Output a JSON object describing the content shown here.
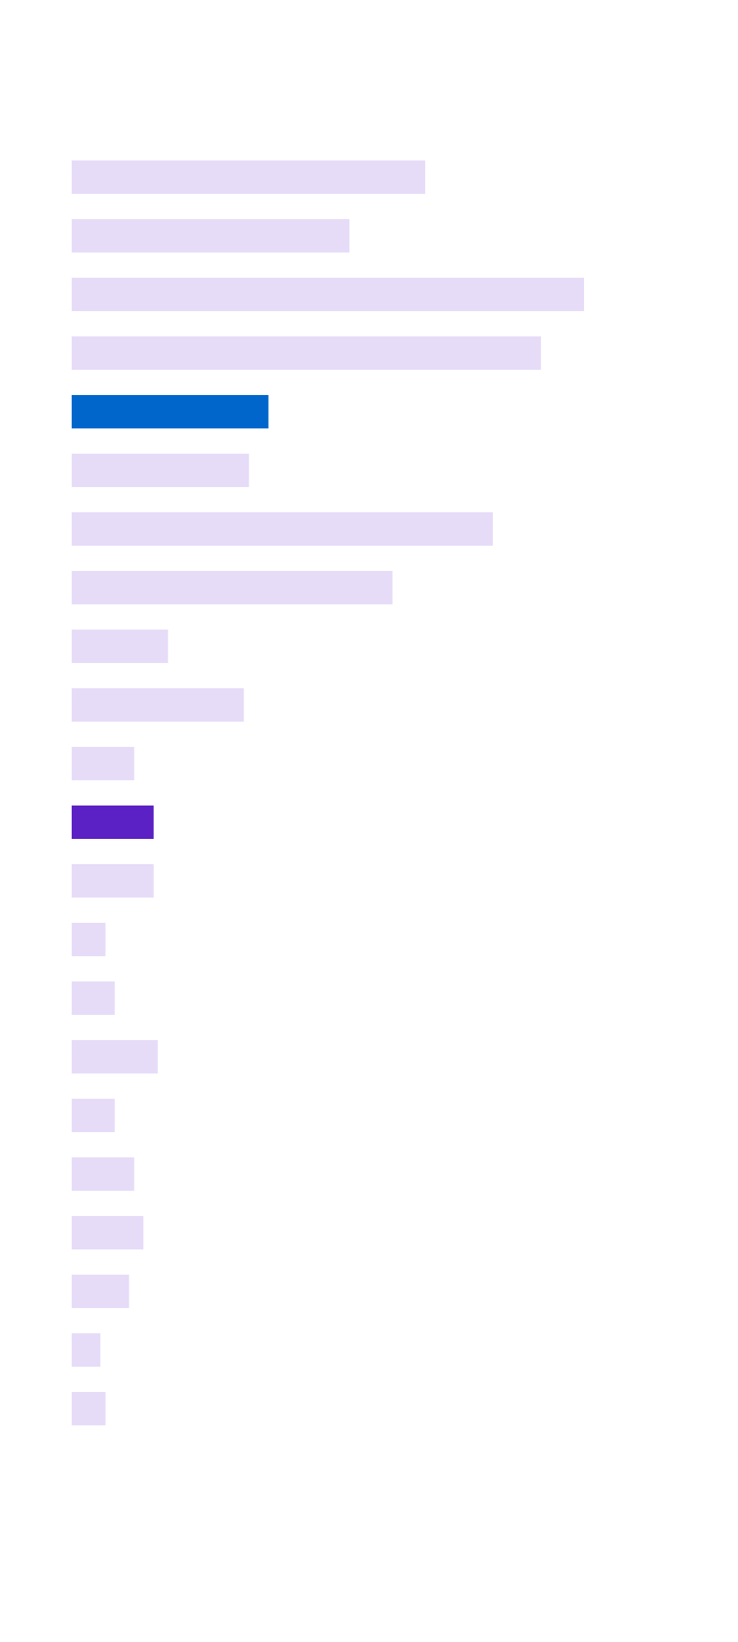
{
  "chart_data": {
    "type": "barh",
    "values": [
      345,
      271,
      500,
      458,
      192,
      173,
      411,
      313,
      94,
      168,
      61,
      80,
      80,
      33,
      42,
      84,
      42,
      61,
      70,
      56,
      28,
      33
    ],
    "colors": [
      "#e6dcf8",
      "#e6dcf8",
      "#e6dcf8",
      "#e6dcf8",
      "#0066cc",
      "#e6dcf8",
      "#e6dcf8",
      "#e6dcf8",
      "#e6dcf8",
      "#e6dcf8",
      "#e6dcf8",
      "#5b21c4",
      "#e6dcf8",
      "#e6dcf8",
      "#e6dcf8",
      "#e6dcf8",
      "#e6dcf8",
      "#e6dcf8",
      "#e6dcf8",
      "#e6dcf8",
      "#e6dcf8",
      "#e6dcf8"
    ],
    "xlim": [
      0,
      500
    ]
  }
}
